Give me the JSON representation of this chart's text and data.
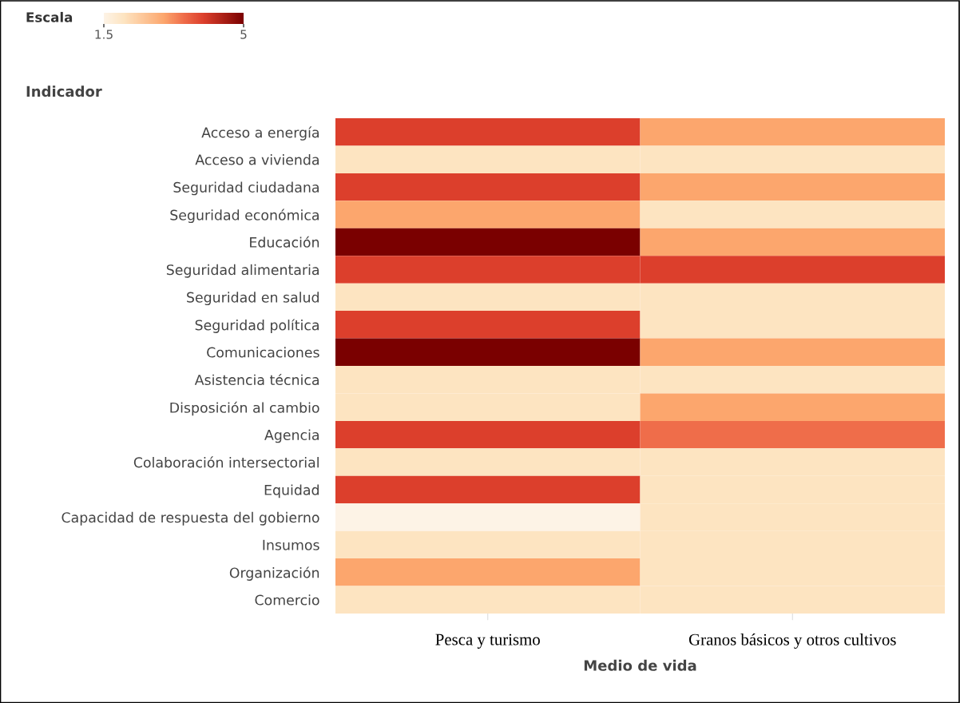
{
  "chart_data": {
    "type": "heatmap",
    "clabel": "Escala",
    "clim": [
      1.5,
      5
    ],
    "cticks": [
      1.5,
      5
    ],
    "ylabel": "Indicador",
    "xlabel": "Medio de vida",
    "categories": [
      "Pesca y turismo",
      "Granos básicos y otros cultivos"
    ],
    "y_categories": [
      "Acceso a energía",
      "Acceso a vivienda",
      "Seguridad ciudadana",
      "Seguridad económica",
      "Educación",
      "Seguridad alimentaria",
      "Seguridad en salud",
      "Seguridad política",
      "Comunicaciones",
      "Asistencia técnica",
      "Disposición al cambio",
      "Agencia",
      "Colaboración intersectorial",
      "Equidad",
      "Capacidad de respuesta del gobierno",
      "Insumos",
      "Organización",
      "Comercio"
    ],
    "cells": [
      [
        4,
        3
      ],
      [
        2,
        2
      ],
      [
        4,
        3
      ],
      [
        3,
        2
      ],
      [
        5,
        3
      ],
      [
        4,
        4
      ],
      [
        2,
        2
      ],
      [
        4,
        2
      ],
      [
        5,
        3
      ],
      [
        2,
        2
      ],
      [
        2,
        3
      ],
      [
        4,
        3.5
      ],
      [
        2,
        2
      ],
      [
        4,
        2
      ],
      [
        1.5,
        2
      ],
      [
        2,
        2
      ],
      [
        3,
        2
      ],
      [
        2,
        2
      ]
    ]
  }
}
